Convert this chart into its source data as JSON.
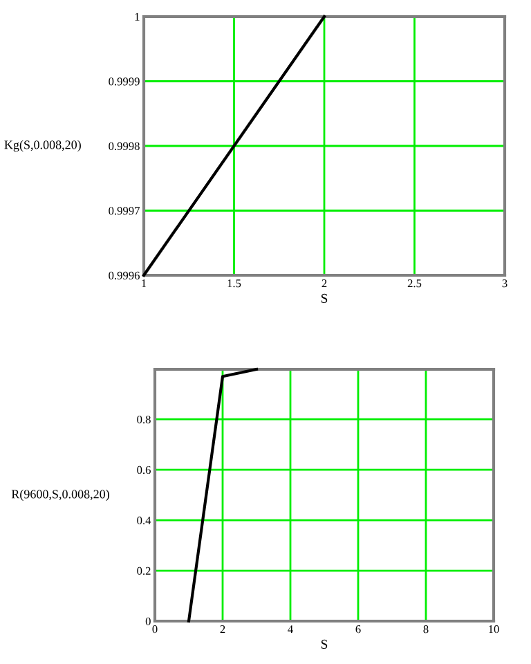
{
  "chart_data": [
    {
      "type": "line",
      "xlabel": "S",
      "ylabel": "Kg(S,0.008,20)",
      "x": [
        1,
        2
      ],
      "series": [
        {
          "color": "#000000",
          "values": [
            0.9996,
            1.0
          ]
        }
      ],
      "xlim": [
        1,
        3
      ],
      "ylim": [
        0.9996,
        1.0
      ],
      "xticks": [
        1,
        1.5,
        2,
        2.5,
        3
      ],
      "yticks": [
        0.9996,
        0.9997,
        0.9998,
        0.9999,
        1
      ],
      "grid": true,
      "line_style": "solid",
      "marker": "none"
    },
    {
      "type": "line",
      "xlabel": "S",
      "ylabel": "R(9600,S,0.008,20)",
      "x": [
        1,
        2,
        3
      ],
      "series": [
        {
          "color": "#000000",
          "values": [
            0,
            0.97,
            0.998
          ]
        }
      ],
      "xlim": [
        0,
        10
      ],
      "ylim": [
        0,
        0.998
      ],
      "xticks": [
        0,
        2,
        4,
        6,
        8,
        10
      ],
      "yticks": [
        0,
        0.2,
        0.4,
        0.6,
        0.8
      ],
      "grid": true,
      "line_style": "solid",
      "marker": "none"
    }
  ]
}
